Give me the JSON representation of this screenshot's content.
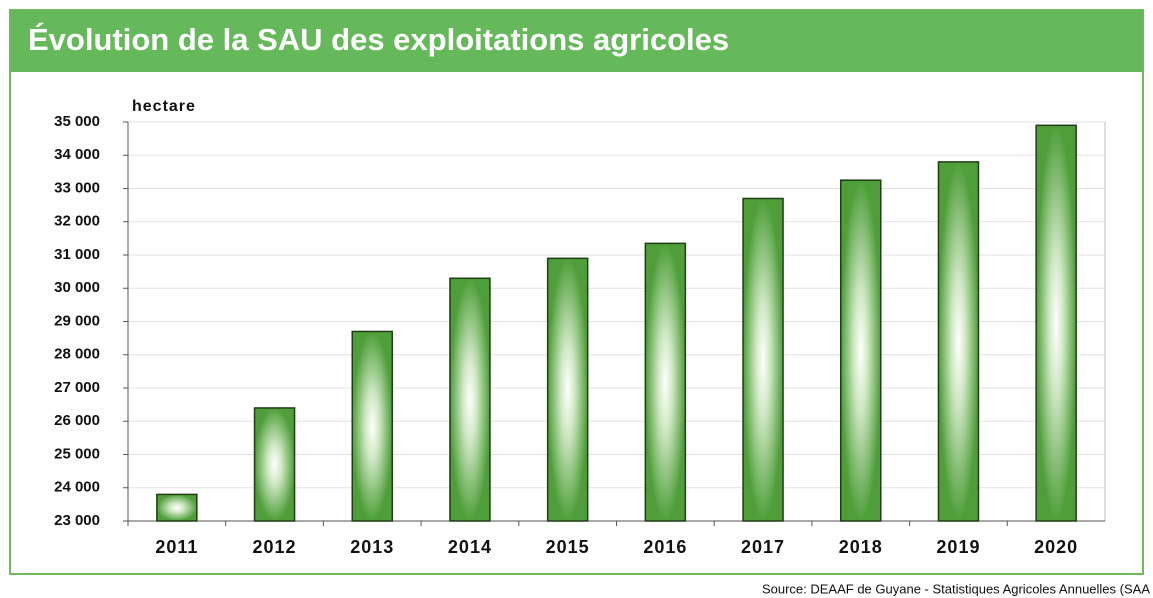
{
  "chart_data": {
    "type": "bar",
    "title": "Évolution de la SAU des exploitations agricoles",
    "y_axis_label": "hectare",
    "source": "Source: DEAAF de Guyane - Statistiques Agricoles Annuelles (SAA",
    "categories": [
      "2011",
      "2012",
      "2013",
      "2014",
      "2015",
      "2016",
      "2017",
      "2018",
      "2019",
      "2020"
    ],
    "values": [
      23800,
      26400,
      28700,
      30300,
      30900,
      31350,
      32700,
      33250,
      33800,
      34900
    ],
    "color": "#4f9e3a",
    "ylim": [
      23000,
      35000
    ],
    "yticks": [
      {
        "value": 23000,
        "label": "23 000"
      },
      {
        "value": 24000,
        "label": "24 000"
      },
      {
        "value": 25000,
        "label": "25 000"
      },
      {
        "value": 26000,
        "label": "26 000"
      },
      {
        "value": 27000,
        "label": "27 000"
      },
      {
        "value": 28000,
        "label": "28 000"
      },
      {
        "value": 29000,
        "label": "29 000"
      },
      {
        "value": 30000,
        "label": "30 000"
      },
      {
        "value": 31000,
        "label": "31 000"
      },
      {
        "value": 32000,
        "label": "32 000"
      },
      {
        "value": 33000,
        "label": "33 000"
      },
      {
        "value": 34000,
        "label": "34 000"
      },
      {
        "value": 35000,
        "label": "35 000"
      }
    ],
    "grid": true
  }
}
